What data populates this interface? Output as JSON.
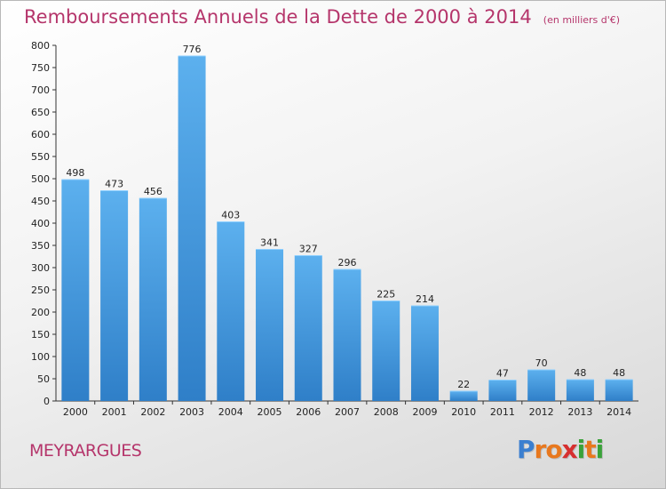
{
  "title": "Remboursements Annuels de la Dette de 2000 à 2014",
  "unit": "(en milliers d'€)",
  "commune": "MEYRARGUES",
  "logo": {
    "text": "Proxiti",
    "letters": [
      "P",
      "r",
      "o",
      "x",
      "i",
      "t",
      "i"
    ],
    "colors": [
      "#3b7fd0",
      "#e8781e",
      "#e8781e",
      "#d62f2f",
      "#3aa23a",
      "#e8781e",
      "#3aa23a"
    ]
  },
  "colors": {
    "bar_light": "#5cb0ee",
    "bar_dark": "#2f7fc8",
    "title": "#b5356b"
  },
  "chart_data": {
    "type": "bar",
    "categories": [
      "2000",
      "2001",
      "2002",
      "2003",
      "2004",
      "2005",
      "2006",
      "2007",
      "2008",
      "2009",
      "2010",
      "2011",
      "2012",
      "2013",
      "2014"
    ],
    "values": [
      498,
      473,
      456,
      776,
      403,
      341,
      327,
      296,
      225,
      214,
      22,
      47,
      70,
      48,
      48
    ],
    "ylim": [
      0,
      800
    ],
    "yticks": [
      0,
      50,
      100,
      150,
      200,
      250,
      300,
      350,
      400,
      450,
      500,
      550,
      600,
      650,
      700,
      750,
      800
    ],
    "grid": false,
    "data_labels": true
  }
}
